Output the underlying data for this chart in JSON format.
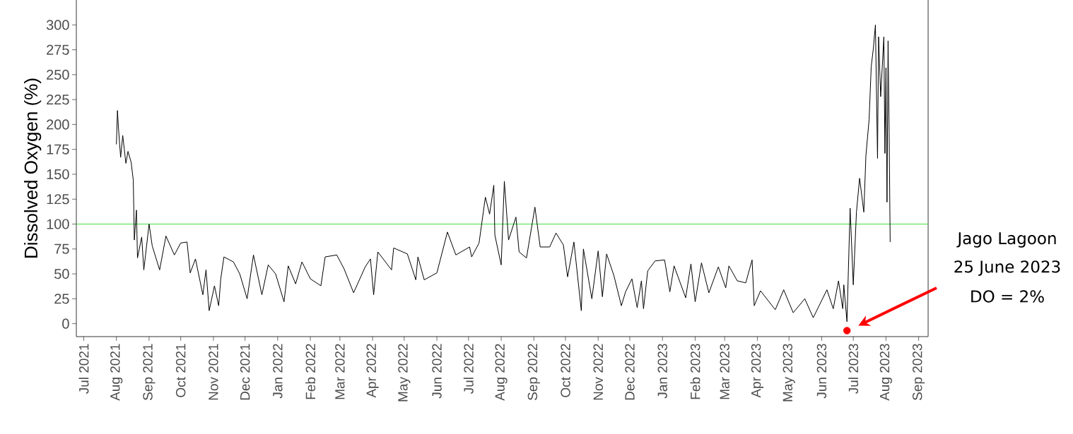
{
  "chart_data": {
    "type": "line",
    "ylabel": "Dissolved Oxygen (%)",
    "x": [
      "2021-08-01",
      "2021-08-02",
      "2021-08-03",
      "2021-08-05",
      "2021-08-07",
      "2021-08-10",
      "2021-08-12",
      "2021-08-15",
      "2021-08-17",
      "2021-08-18",
      "2021-08-20",
      "2021-08-21",
      "2021-08-25",
      "2021-08-27",
      "2021-09-01",
      "2021-09-04",
      "2021-09-11",
      "2021-09-17",
      "2021-09-25",
      "2021-10-01",
      "2021-10-07",
      "2021-10-10",
      "2021-10-15",
      "2021-10-22",
      "2021-10-25",
      "2021-10-28",
      "2021-11-02",
      "2021-11-06",
      "2021-11-08",
      "2021-11-11",
      "2021-11-20",
      "2021-11-26",
      "2021-12-03",
      "2021-12-09",
      "2021-12-17",
      "2021-12-23",
      "2021-12-30",
      "2022-01-07",
      "2022-01-11",
      "2022-01-18",
      "2022-01-24",
      "2022-02-01",
      "2022-02-11",
      "2022-02-15",
      "2022-02-26",
      "2022-03-05",
      "2022-03-14",
      "2022-03-25",
      "2022-03-30",
      "2022-04-02",
      "2022-04-06",
      "2022-04-19",
      "2022-04-21",
      "2022-05-04",
      "2022-05-12",
      "2022-05-14",
      "2022-05-20",
      "2022-06-01",
      "2022-06-11",
      "2022-06-19",
      "2022-07-02",
      "2022-07-04",
      "2022-07-11",
      "2022-07-17",
      "2022-07-21",
      "2022-07-25",
      "2022-07-26",
      "2022-08-01",
      "2022-08-04",
      "2022-08-08",
      "2022-08-15",
      "2022-08-18",
      "2022-08-25",
      "2022-09-02",
      "2022-09-07",
      "2022-09-16",
      "2022-09-22",
      "2022-09-29",
      "2022-10-03",
      "2022-10-09",
      "2022-10-16",
      "2022-10-18",
      "2022-10-26",
      "2022-11-01",
      "2022-11-05",
      "2022-11-09",
      "2022-11-16",
      "2022-11-23",
      "2022-11-27",
      "2022-12-03",
      "2022-12-08",
      "2022-12-12",
      "2022-12-14",
      "2022-12-18",
      "2022-12-25",
      "2023-01-03",
      "2023-01-08",
      "2023-01-12",
      "2023-01-23",
      "2023-01-28",
      "2023-02-01",
      "2023-02-07",
      "2023-02-14",
      "2023-02-23",
      "2023-03-02",
      "2023-03-05",
      "2023-03-13",
      "2023-03-21",
      "2023-03-27",
      "2023-03-29",
      "2023-04-04",
      "2023-04-18",
      "2023-04-26",
      "2023-05-05",
      "2023-05-16",
      "2023-05-24",
      "2023-06-06",
      "2023-06-12",
      "2023-06-17",
      "2023-06-21",
      "2023-06-22",
      "2023-06-25",
      "2023-06-28",
      "2023-07-01",
      "2023-07-04",
      "2023-07-07",
      "2023-07-11",
      "2023-07-13",
      "2023-07-16",
      "2023-07-18",
      "2023-07-20",
      "2023-07-22",
      "2023-07-24",
      "2023-07-25",
      "2023-07-27",
      "2023-07-30",
      "2023-07-31",
      "2023-08-01",
      "2023-08-02",
      "2023-08-03",
      "2023-08-04",
      "2023-08-05"
    ],
    "series": [
      {
        "type": "scatter",
        "color": "#ff0000",
        "x": [
          "2023-06-25"
        ],
        "values": [
          -7
        ]
      },
      {
        "color": "#000000",
        "marker": "none",
        "values": [
          180,
          214,
          196,
          167,
          189,
          161,
          173,
          162,
          144,
          84,
          114,
          66,
          87,
          54,
          100,
          78,
          54,
          88,
          69,
          81,
          82,
          51,
          65,
          29,
          54,
          13,
          38,
          18,
          45,
          67,
          62,
          50,
          25,
          69,
          29,
          59,
          50,
          22,
          58,
          40,
          62,
          45,
          38,
          67,
          69,
          55,
          31,
          57,
          65,
          29,
          72,
          54,
          76,
          70,
          44,
          67,
          44,
          51,
          92,
          69,
          77,
          67,
          81,
          127,
          110,
          139,
          89,
          59,
          143,
          84,
          107,
          72,
          66,
          117,
          77,
          77,
          91,
          79,
          47,
          82,
          13,
          75,
          25,
          73,
          27,
          70,
          48,
          18,
          32,
          45,
          16,
          43,
          15,
          53,
          63,
          64,
          32,
          58,
          26,
          60,
          22,
          61,
          31,
          57,
          36,
          58,
          43,
          41,
          64,
          18,
          33,
          14,
          34,
          11,
          25,
          6,
          34,
          15,
          43,
          15,
          39,
          2,
          116,
          39,
          112,
          146,
          112,
          169,
          205,
          258,
          276,
          300,
          166,
          288,
          228,
          288,
          171,
          257,
          122,
          284,
          193,
          82
        ]
      }
    ],
    "xlim": [
      "2021-06-24",
      "2023-09-10"
    ],
    "xticks": [
      {
        "value": "2021-07-01",
        "label": "Jul 2021"
      },
      {
        "value": "2021-08-01",
        "label": "Aug 2021"
      },
      {
        "value": "2021-09-01",
        "label": "Sep 2021"
      },
      {
        "value": "2021-10-01",
        "label": "Oct 2021"
      },
      {
        "value": "2021-11-01",
        "label": "Nov 2021"
      },
      {
        "value": "2021-12-01",
        "label": "Dec 2021"
      },
      {
        "value": "2022-01-01",
        "label": "Jan 2022"
      },
      {
        "value": "2022-02-01",
        "label": "Feb 2022"
      },
      {
        "value": "2022-03-01",
        "label": "Mar 2022"
      },
      {
        "value": "2022-04-01",
        "label": "Apr 2022"
      },
      {
        "value": "2022-05-01",
        "label": "May 2022"
      },
      {
        "value": "2022-06-01",
        "label": "Jun 2022"
      },
      {
        "value": "2022-07-01",
        "label": "Jul 2022"
      },
      {
        "value": "2022-08-01",
        "label": "Aug 2022"
      },
      {
        "value": "2022-09-01",
        "label": "Sep 2022"
      },
      {
        "value": "2022-10-01",
        "label": "Oct 2022"
      },
      {
        "value": "2022-11-01",
        "label": "Nov 2022"
      },
      {
        "value": "2022-12-01",
        "label": "Dec 2022"
      },
      {
        "value": "2023-01-01",
        "label": "Jan 2023"
      },
      {
        "value": "2023-02-01",
        "label": "Feb 2023"
      },
      {
        "value": "2023-03-01",
        "label": "Mar 2023"
      },
      {
        "value": "2023-04-01",
        "label": "Apr 2023"
      },
      {
        "value": "2023-05-01",
        "label": "May 2023"
      },
      {
        "value": "2023-06-01",
        "label": "Jun 2023"
      },
      {
        "value": "2023-07-01",
        "label": "Jul 2023"
      },
      {
        "value": "2023-08-01",
        "label": "Aug 2023"
      },
      {
        "value": "2023-09-01",
        "label": "Sep 2023"
      }
    ],
    "ylim": [
      -13,
      325
    ],
    "yticks": [
      0,
      25,
      50,
      75,
      100,
      125,
      150,
      175,
      200,
      225,
      250,
      275,
      300
    ],
    "ref_lines": [
      {
        "axis": "y",
        "value": 100,
        "color": "#40e040"
      }
    ],
    "annotations": [
      "Jago Lagoon",
      "25 June 2023",
      "DO = 2%"
    ],
    "grid": false,
    "line_style": "solid"
  }
}
